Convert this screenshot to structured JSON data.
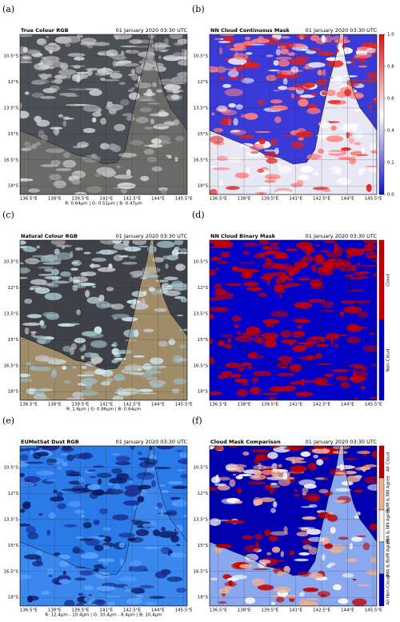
{
  "xlim": [
    136,
    145.7
  ],
  "ylim": [
    -9.25,
    -18.5
  ],
  "xticks": [
    {
      "value": 136.5,
      "label": "136.5°E"
    },
    {
      "value": 138,
      "label": "138°E"
    },
    {
      "value": 139.5,
      "label": "139.5°E"
    },
    {
      "value": 141,
      "label": "141°E"
    },
    {
      "value": 142.5,
      "label": "142.5°E"
    },
    {
      "value": 144,
      "label": "144°E"
    },
    {
      "value": 145.5,
      "label": "145.5°E"
    }
  ],
  "yticks": [
    {
      "value": -10.5,
      "label": "10.5°S"
    },
    {
      "value": -12,
      "label": "12°S"
    },
    {
      "value": -13.5,
      "label": "13.5°S"
    },
    {
      "value": -15,
      "label": "15°S"
    },
    {
      "value": -16.5,
      "label": "16.5°S"
    },
    {
      "value": -18,
      "label": "18°S"
    }
  ],
  "panels": [
    {
      "letter": "(a)",
      "title": "True Colour RGB",
      "date": "01 January 2020 03:30 UTC",
      "caption": "R: 0.64μm | G: 0.51μm | B: 0.47μm"
    },
    {
      "letter": "(b)",
      "title": "NN Cloud Continuous Mask",
      "date": "01 January 2020 03:30 UTC",
      "colorbar": {
        "lim": [
          0,
          1
        ],
        "colors": [
          "#1010c8",
          "#ffffff",
          "#e01010"
        ],
        "ticks": [
          {
            "value": 0,
            "label": "0.0"
          },
          {
            "value": 0.2,
            "label": "0.2"
          },
          {
            "value": 0.4,
            "label": "0.4"
          },
          {
            "value": 0.6,
            "label": "0.6"
          },
          {
            "value": 0.8,
            "label": "0.8"
          },
          {
            "value": 1,
            "label": "1.0"
          }
        ]
      }
    },
    {
      "letter": "(c)",
      "title": "Natural Colour RGB",
      "date": "01 January 2020 03:30 UTC",
      "caption": "R: 1.6μm | G: 0.86μm | B: 0.64μm"
    },
    {
      "letter": "(d)",
      "title": "NN Cloud Binary Mask",
      "date": "01 January 2020 03:30 UTC",
      "legend": [
        {
          "label": "Cloud",
          "color": "#c80000"
        },
        {
          "label": "Non-Cloud",
          "color": "#0000c8"
        }
      ]
    },
    {
      "letter": "(e)",
      "title": "EUMetSat Dust RGB",
      "date": "01 January 2020 03:30 UTC",
      "caption": "R: 12.4μm - 10.4μm | G: 10.4μm - 8.4μm | B: 10.4μm"
    },
    {
      "letter": "(f)",
      "title": "Cloud Mask Comparison",
      "date": "01 January 2020 03:30 UTC",
      "legend": [
        {
          "label": "All Cloud",
          "color": "#c00000"
        },
        {
          "label": "BoM & NN Agree",
          "color": "#f4b090"
        },
        {
          "label": "JMA & NN Agree",
          "color": "#f4f4f4"
        },
        {
          "label": "JMA & BoM Agree",
          "color": "#8aa8f0"
        },
        {
          "label": "All Non-Cloud",
          "color": "#0000b0"
        }
      ]
    }
  ]
}
